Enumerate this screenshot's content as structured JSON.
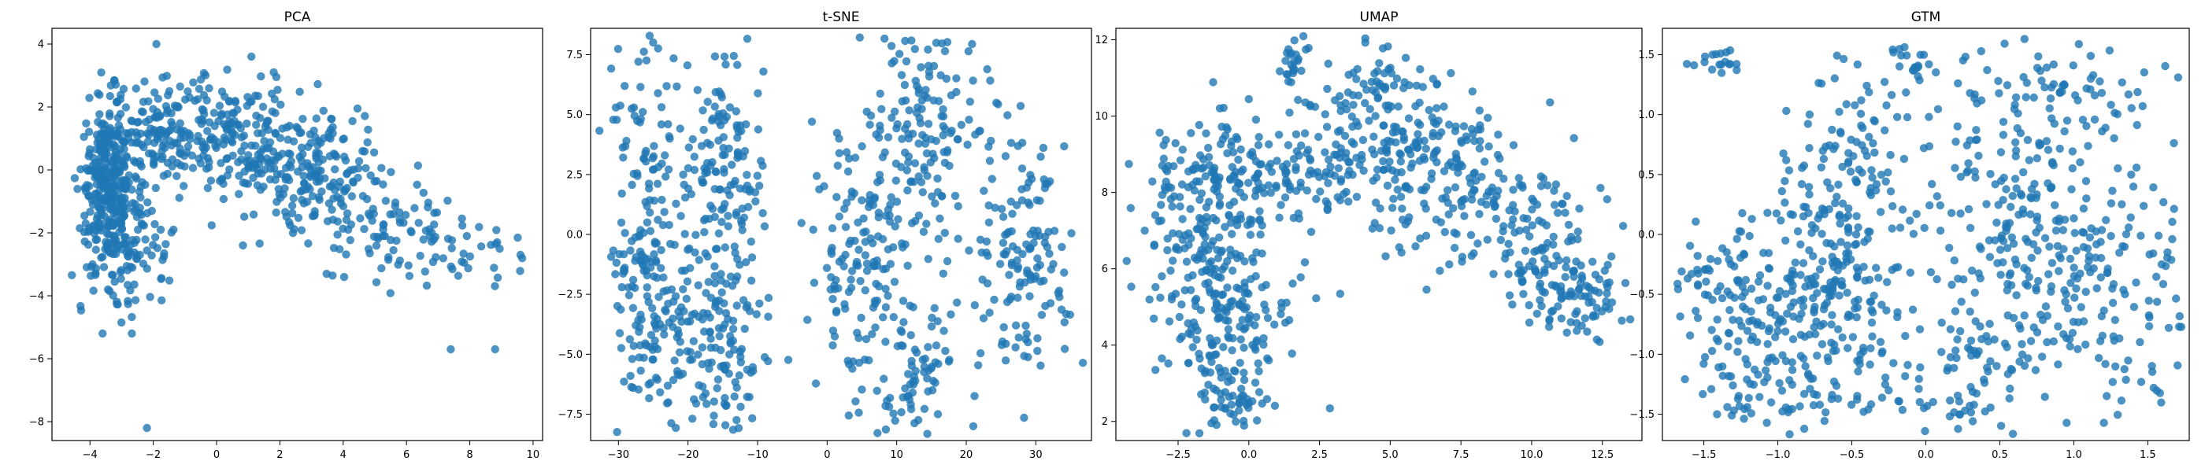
{
  "colors": {
    "point": "#1f77b4"
  },
  "chart_data": [
    {
      "type": "scatter",
      "title": "PCA",
      "xlabel": "",
      "ylabel": "",
      "xlim": [
        -5.2,
        10.3
      ],
      "ylim": [
        -8.6,
        4.5
      ],
      "xticks": [
        -4,
        -2,
        0,
        2,
        4,
        6,
        8,
        10
      ],
      "yticks": [
        -8,
        -6,
        -4,
        -2,
        0,
        2,
        4
      ],
      "point_count": 1000,
      "point_opacity": 0.8,
      "points": [
        [
          -2.2,
          -8.2
        ],
        [
          -3.6,
          -5.2
        ],
        [
          7.4,
          -5.7
        ],
        [
          8.8,
          -5.7
        ],
        [
          -1.9,
          4.0
        ],
        [
          1.1,
          3.6
        ],
        [
          9.6,
          -2.7
        ]
      ],
      "clusters": [
        {
          "center": [
            -3.4,
            -0.6
          ],
          "spread": [
            0.45,
            1.35
          ],
          "count": 330
        },
        {
          "center": [
            -1.6,
            1.2
          ],
          "spread": [
            0.9,
            0.8
          ],
          "count": 150
        },
        {
          "center": [
            0.8,
            0.9
          ],
          "spread": [
            1.1,
            1.1
          ],
          "count": 170
        },
        {
          "center": [
            3.4,
            0.0
          ],
          "spread": [
            1.0,
            1.0
          ],
          "count": 160
        },
        {
          "center": [
            5.8,
            -2.0
          ],
          "spread": [
            1.0,
            0.8
          ],
          "count": 80
        },
        {
          "center": [
            8.2,
            -2.6
          ],
          "spread": [
            1.0,
            0.6
          ],
          "count": 25
        },
        {
          "center": [
            -2.5,
            -2.5
          ],
          "spread": [
            0.6,
            0.9
          ],
          "count": 78
        }
      ]
    },
    {
      "type": "scatter",
      "title": "t-SNE",
      "xlabel": "",
      "ylabel": "",
      "xlim": [
        -34,
        38
      ],
      "ylim": [
        -8.6,
        8.6
      ],
      "xticks": [
        -30,
        -20,
        -10,
        0,
        10,
        20,
        30
      ],
      "yticks": [
        -7.5,
        -5.0,
        -2.5,
        0.0,
        2.5,
        5.0,
        7.5
      ],
      "point_count": 1000,
      "point_opacity": 0.8,
      "points": [],
      "clusters": [
        {
          "center": [
            -26,
            1.5
          ],
          "spread": [
            3.0,
            3.4
          ],
          "count": 150
        },
        {
          "center": [
            -15,
            3.0
          ],
          "spread": [
            3.0,
            2.6
          ],
          "count": 130
        },
        {
          "center": [
            -15,
            -4.5
          ],
          "spread": [
            3.0,
            2.2
          ],
          "count": 130
        },
        {
          "center": [
            -24,
            -4.0
          ],
          "spread": [
            3.0,
            2.0
          ],
          "count": 80
        },
        {
          "center": [
            5,
            -1.5
          ],
          "spread": [
            3.5,
            3.0
          ],
          "count": 140
        },
        {
          "center": [
            13,
            -5.5
          ],
          "spread": [
            2.5,
            1.8
          ],
          "count": 70
        },
        {
          "center": [
            14,
            4.0
          ],
          "spread": [
            4.5,
            2.5
          ],
          "count": 160
        },
        {
          "center": [
            28,
            -1.0
          ],
          "spread": [
            3.5,
            2.6
          ],
          "count": 140
        }
      ]
    },
    {
      "type": "scatter",
      "title": "UMAP",
      "xlabel": "",
      "ylabel": "",
      "xlim": [
        -4.7,
        13.9
      ],
      "ylim": [
        1.5,
        12.3
      ],
      "xticks": [
        -2.5,
        0.0,
        2.5,
        5.0,
        7.5,
        10.0,
        12.5
      ],
      "yticks": [
        2,
        4,
        6,
        8,
        10,
        12
      ],
      "point_count": 1000,
      "point_opacity": 0.8,
      "points": [],
      "clusters": [
        {
          "center": [
            -1.2,
            8.2
          ],
          "spread": [
            1.4,
            0.9
          ],
          "count": 150
        },
        {
          "center": [
            -1.0,
            5.2
          ],
          "spread": [
            1.2,
            1.2
          ],
          "count": 200
        },
        {
          "center": [
            -0.6,
            2.6
          ],
          "spread": [
            0.7,
            0.5
          ],
          "count": 60
        },
        {
          "center": [
            1.5,
            11.3
          ],
          "spread": [
            0.3,
            0.5
          ],
          "count": 25
        },
        {
          "center": [
            4.5,
            10.8
          ],
          "spread": [
            1.0,
            0.6
          ],
          "count": 60
        },
        {
          "center": [
            3.0,
            8.8
          ],
          "spread": [
            1.8,
            0.8
          ],
          "count": 150
        },
        {
          "center": [
            6.5,
            8.5
          ],
          "spread": [
            1.5,
            1.1
          ],
          "count": 150
        },
        {
          "center": [
            9.8,
            7.0
          ],
          "spread": [
            1.3,
            1.0
          ],
          "count": 120
        },
        {
          "center": [
            11.5,
            5.3
          ],
          "spread": [
            1.0,
            0.5
          ],
          "count": 85
        }
      ]
    },
    {
      "type": "scatter",
      "title": "GTM",
      "xlabel": "",
      "ylabel": "",
      "xlim": [
        -1.78,
        1.78
      ],
      "ylim": [
        -1.72,
        1.72
      ],
      "xticks": [
        -1.5,
        -1.0,
        -0.5,
        0.0,
        0.5,
        1.0,
        1.5
      ],
      "yticks": [
        -1.5,
        -1.0,
        -0.5,
        0.0,
        0.5,
        1.0,
        1.5
      ],
      "point_count": 1000,
      "point_opacity": 0.8,
      "points": [],
      "clusters": [
        {
          "center": [
            -1.4,
            1.45
          ],
          "spread": [
            0.08,
            0.06
          ],
          "count": 18
        },
        {
          "center": [
            -0.1,
            1.45
          ],
          "spread": [
            0.08,
            0.07
          ],
          "count": 18
        },
        {
          "center": [
            -1.2,
            -0.5
          ],
          "spread": [
            0.25,
            0.35
          ],
          "count": 120
        },
        {
          "center": [
            -0.6,
            -0.2
          ],
          "spread": [
            0.22,
            0.5
          ],
          "count": 200
        },
        {
          "center": [
            -1.0,
            -1.2
          ],
          "spread": [
            0.35,
            0.25
          ],
          "count": 100
        },
        {
          "center": [
            -0.4,
            0.9
          ],
          "spread": [
            0.35,
            0.35
          ],
          "count": 60
        },
        {
          "center": [
            0.7,
            0.0
          ],
          "spread": [
            0.35,
            0.55
          ],
          "count": 230
        },
        {
          "center": [
            0.9,
            1.15
          ],
          "spread": [
            0.4,
            0.25
          ],
          "count": 80
        },
        {
          "center": [
            0.4,
            -1.1
          ],
          "spread": [
            0.35,
            0.3
          ],
          "count": 90
        },
        {
          "center": [
            1.4,
            -0.5
          ],
          "spread": [
            0.25,
            0.7
          ],
          "count": 84
        }
      ]
    }
  ]
}
